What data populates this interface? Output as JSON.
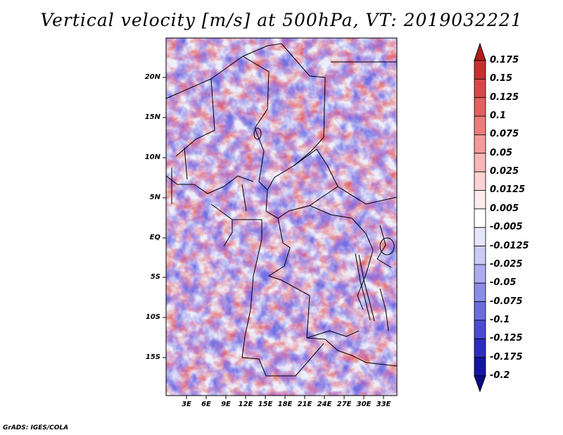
{
  "title": "Vertical velocity [m/s] at 500hPa, VT: 2019032221",
  "credit": "GrADS: IGES/COLA",
  "map": {
    "lat_labels": [
      "20N",
      "15N",
      "10N",
      "5N",
      "EQ",
      "5S",
      "10S",
      "15S"
    ],
    "lon_labels": [
      "3E",
      "6E",
      "9E",
      "12E",
      "15E",
      "18E",
      "21E",
      "24E",
      "27E",
      "30E",
      "33E"
    ]
  },
  "colorbar": {
    "levels": [
      "0.175",
      "0.15",
      "0.125",
      "0.1",
      "0.075",
      "0.05",
      "0.025",
      "0.0125",
      "0.005",
      "-0.005",
      "-0.0125",
      "-0.025",
      "-0.05",
      "-0.075",
      "-0.1",
      "-0.125",
      "-0.175",
      "-0.2"
    ],
    "colors": [
      "#b01c1c",
      "#c83030",
      "#d84848",
      "#e66060",
      "#ef7c7c",
      "#f59a9a",
      "#f9b8b8",
      "#fcd2d2",
      "#feebeb",
      "#ffffff",
      "#e6e6fb",
      "#cbcbf6",
      "#ababef",
      "#8c8ce8",
      "#6c6cdf",
      "#4b4bd1",
      "#2c2cbe",
      "#1414a4",
      "#0a0a8c"
    ]
  }
}
